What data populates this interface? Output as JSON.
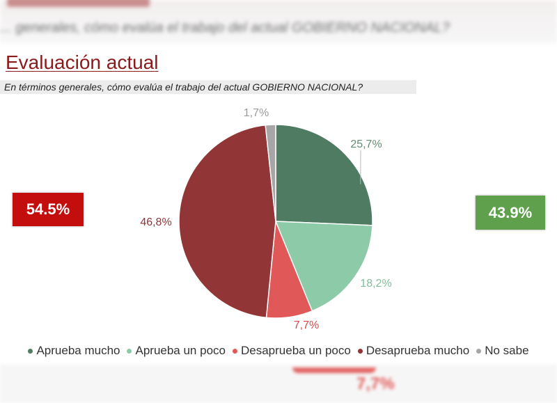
{
  "header": {
    "blurred_question": "... generales, cómo evalúa el trabajo del actual GOBIERNO NACIONAL?",
    "title": "Evaluación actual",
    "subtitle": "En términos generales, cómo evalúa el trabajo del actual GOBIERNO NACIONAL?"
  },
  "summary": {
    "left_value": "54.5%",
    "left_color": "#c40d0d",
    "right_value": "43.9%",
    "right_color": "#5ea04c"
  },
  "chart_data": {
    "type": "pie",
    "title": "Evaluación actual",
    "subtitle": "En términos generales, cómo evalúa el trabajo del actual GOBIERNO NACIONAL?",
    "slices": [
      {
        "label": "Aprueba mucho",
        "value": 25.7,
        "display": "25,7%",
        "color": "#4e7b62",
        "label_color": "#5e8d6f"
      },
      {
        "label": "Aprueba un poco",
        "value": 18.2,
        "display": "18,2%",
        "color": "#8ccaa8",
        "label_color": "#7fbf9b"
      },
      {
        "label": "Desaprueba un poco",
        "value": 7.7,
        "display": "7,7%",
        "color": "#e05858",
        "label_color": "#d14a4a"
      },
      {
        "label": "Desaprueba mucho",
        "value": 46.8,
        "display": "46,8%",
        "color": "#923537",
        "label_color": "#8e3436"
      },
      {
        "label": "No sabe",
        "value": 1.7,
        "display": "1,7%",
        "color": "#a6a6a6",
        "label_color": "#9a9a9a"
      }
    ],
    "legend_position": "bottom"
  },
  "footer": {
    "blurred_value": "7,7%"
  }
}
